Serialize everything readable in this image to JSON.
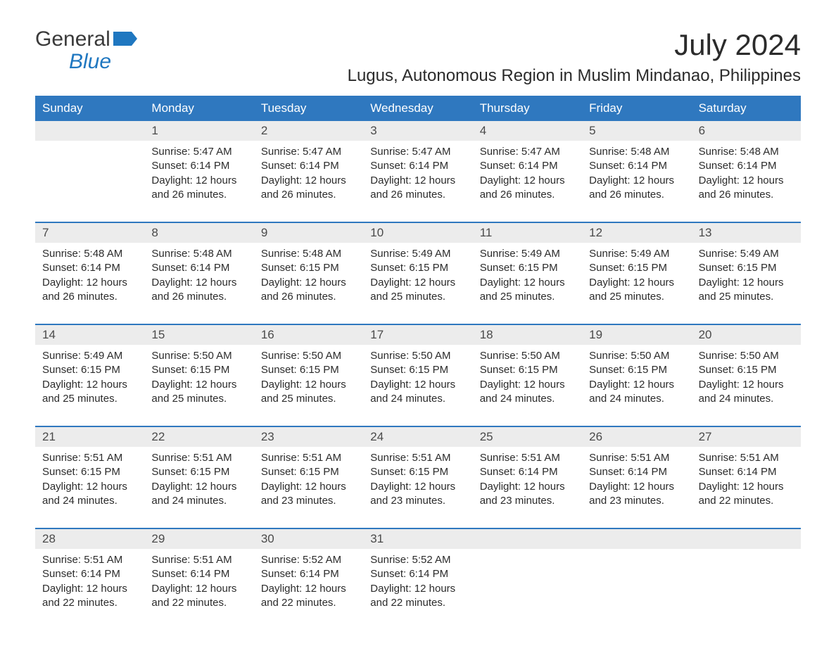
{
  "logo": {
    "top": "General",
    "bottom": "Blue"
  },
  "header": {
    "month_title": "July 2024",
    "location": "Lugus, Autonomous Region in Muslim Mindanao, Philippines"
  },
  "colors": {
    "header_bg": "#2f78bf",
    "header_fg": "#ffffff",
    "daynum_bg": "#ececec",
    "text": "#2b2b2b",
    "logo_blue": "#1f77c0"
  },
  "day_labels": {
    "sunrise_prefix": "Sunrise: ",
    "sunset_prefix": "Sunset: ",
    "daylight_prefix": "Daylight: "
  },
  "days_of_week": [
    "Sunday",
    "Monday",
    "Tuesday",
    "Wednesday",
    "Thursday",
    "Friday",
    "Saturday"
  ],
  "weeks": [
    [
      null,
      {
        "n": "1",
        "sunrise": "5:47 AM",
        "sunset": "6:14 PM",
        "daylight": "12 hours and 26 minutes."
      },
      {
        "n": "2",
        "sunrise": "5:47 AM",
        "sunset": "6:14 PM",
        "daylight": "12 hours and 26 minutes."
      },
      {
        "n": "3",
        "sunrise": "5:47 AM",
        "sunset": "6:14 PM",
        "daylight": "12 hours and 26 minutes."
      },
      {
        "n": "4",
        "sunrise": "5:47 AM",
        "sunset": "6:14 PM",
        "daylight": "12 hours and 26 minutes."
      },
      {
        "n": "5",
        "sunrise": "5:48 AM",
        "sunset": "6:14 PM",
        "daylight": "12 hours and 26 minutes."
      },
      {
        "n": "6",
        "sunrise": "5:48 AM",
        "sunset": "6:14 PM",
        "daylight": "12 hours and 26 minutes."
      }
    ],
    [
      {
        "n": "7",
        "sunrise": "5:48 AM",
        "sunset": "6:14 PM",
        "daylight": "12 hours and 26 minutes."
      },
      {
        "n": "8",
        "sunrise": "5:48 AM",
        "sunset": "6:14 PM",
        "daylight": "12 hours and 26 minutes."
      },
      {
        "n": "9",
        "sunrise": "5:48 AM",
        "sunset": "6:15 PM",
        "daylight": "12 hours and 26 minutes."
      },
      {
        "n": "10",
        "sunrise": "5:49 AM",
        "sunset": "6:15 PM",
        "daylight": "12 hours and 25 minutes."
      },
      {
        "n": "11",
        "sunrise": "5:49 AM",
        "sunset": "6:15 PM",
        "daylight": "12 hours and 25 minutes."
      },
      {
        "n": "12",
        "sunrise": "5:49 AM",
        "sunset": "6:15 PM",
        "daylight": "12 hours and 25 minutes."
      },
      {
        "n": "13",
        "sunrise": "5:49 AM",
        "sunset": "6:15 PM",
        "daylight": "12 hours and 25 minutes."
      }
    ],
    [
      {
        "n": "14",
        "sunrise": "5:49 AM",
        "sunset": "6:15 PM",
        "daylight": "12 hours and 25 minutes."
      },
      {
        "n": "15",
        "sunrise": "5:50 AM",
        "sunset": "6:15 PM",
        "daylight": "12 hours and 25 minutes."
      },
      {
        "n": "16",
        "sunrise": "5:50 AM",
        "sunset": "6:15 PM",
        "daylight": "12 hours and 25 minutes."
      },
      {
        "n": "17",
        "sunrise": "5:50 AM",
        "sunset": "6:15 PM",
        "daylight": "12 hours and 24 minutes."
      },
      {
        "n": "18",
        "sunrise": "5:50 AM",
        "sunset": "6:15 PM",
        "daylight": "12 hours and 24 minutes."
      },
      {
        "n": "19",
        "sunrise": "5:50 AM",
        "sunset": "6:15 PM",
        "daylight": "12 hours and 24 minutes."
      },
      {
        "n": "20",
        "sunrise": "5:50 AM",
        "sunset": "6:15 PM",
        "daylight": "12 hours and 24 minutes."
      }
    ],
    [
      {
        "n": "21",
        "sunrise": "5:51 AM",
        "sunset": "6:15 PM",
        "daylight": "12 hours and 24 minutes."
      },
      {
        "n": "22",
        "sunrise": "5:51 AM",
        "sunset": "6:15 PM",
        "daylight": "12 hours and 24 minutes."
      },
      {
        "n": "23",
        "sunrise": "5:51 AM",
        "sunset": "6:15 PM",
        "daylight": "12 hours and 23 minutes."
      },
      {
        "n": "24",
        "sunrise": "5:51 AM",
        "sunset": "6:15 PM",
        "daylight": "12 hours and 23 minutes."
      },
      {
        "n": "25",
        "sunrise": "5:51 AM",
        "sunset": "6:14 PM",
        "daylight": "12 hours and 23 minutes."
      },
      {
        "n": "26",
        "sunrise": "5:51 AM",
        "sunset": "6:14 PM",
        "daylight": "12 hours and 23 minutes."
      },
      {
        "n": "27",
        "sunrise": "5:51 AM",
        "sunset": "6:14 PM",
        "daylight": "12 hours and 22 minutes."
      }
    ],
    [
      {
        "n": "28",
        "sunrise": "5:51 AM",
        "sunset": "6:14 PM",
        "daylight": "12 hours and 22 minutes."
      },
      {
        "n": "29",
        "sunrise": "5:51 AM",
        "sunset": "6:14 PM",
        "daylight": "12 hours and 22 minutes."
      },
      {
        "n": "30",
        "sunrise": "5:52 AM",
        "sunset": "6:14 PM",
        "daylight": "12 hours and 22 minutes."
      },
      {
        "n": "31",
        "sunrise": "5:52 AM",
        "sunset": "6:14 PM",
        "daylight": "12 hours and 22 minutes."
      },
      null,
      null,
      null
    ]
  ]
}
